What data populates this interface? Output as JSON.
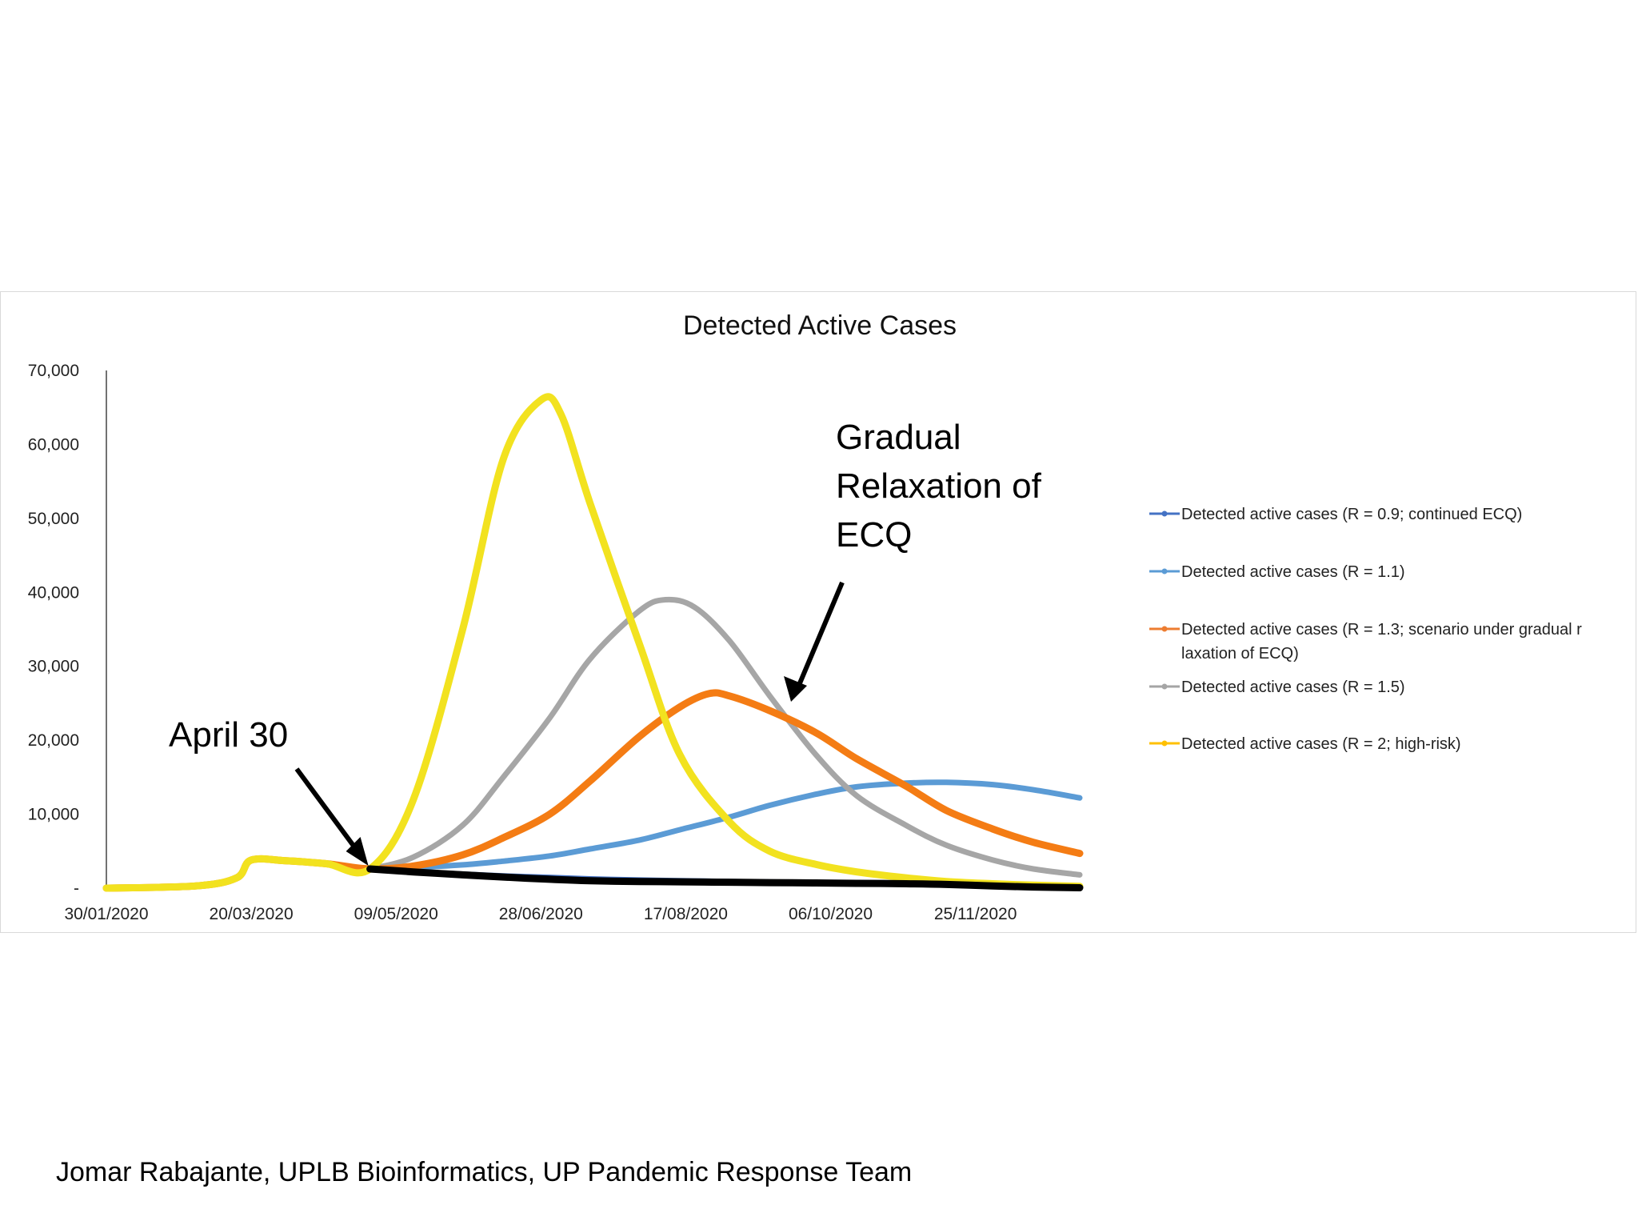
{
  "chart_data": {
    "type": "line",
    "title": "Detected Active Cases",
    "xlabel": "",
    "ylabel": "",
    "x_tick_labels": [
      "30/01/2020",
      "20/03/2020",
      "09/05/2020",
      "28/06/2020",
      "17/08/2020",
      "06/10/2020",
      "25/11/2020"
    ],
    "y_tick_labels": [
      "-",
      "10,000",
      "20,000",
      "30,000",
      "40,000",
      "50,000",
      "60,000",
      "70,000"
    ],
    "ylim": [
      0,
      70000
    ],
    "xlim": [
      "30/01/2020",
      "31/12/2020"
    ],
    "grid": false,
    "legend_position": "right",
    "series": [
      {
        "name": "Detected active cases (R = 0.9; continued ECQ)",
        "color": "#4472C4",
        "x": [
          "30/04/2020",
          "15/05/2020",
          "01/06/2020",
          "15/06/2020",
          "01/07/2020",
          "15/07/2020",
          "01/08/2020",
          "15/08/2020",
          "01/09/2020",
          "20/09/2020"
        ],
        "y": [
          2600,
          2300,
          1950,
          1700,
          1500,
          1300,
          1150,
          1050,
          950,
          850
        ]
      },
      {
        "name": "Detected active cases (R = 1.1)",
        "color": "#5B9BD5",
        "x": [
          "30/04/2020",
          "15/05/2020",
          "01/06/2020",
          "15/06/2020",
          "01/07/2020",
          "15/07/2020",
          "01/08/2020",
          "15/08/2020",
          "01/09/2020",
          "15/09/2020",
          "01/10/2020",
          "15/10/2020",
          "01/11/2020",
          "15/11/2020",
          "01/12/2020",
          "15/12/2020",
          "31/12/2020"
        ],
        "y": [
          2600,
          2800,
          3150,
          3650,
          4350,
          5300,
          6500,
          7900,
          9600,
          11200,
          12700,
          13700,
          14200,
          14300,
          14000,
          13300,
          12200
        ]
      },
      {
        "name": "Detected active cases (R = 1.3; scenario under gradual relaxation of ECQ)",
        "color": "#ED7D31",
        "x": [
          "30/01/2020",
          "01/03/2020",
          "15/03/2020",
          "20/03/2020",
          "01/04/2020",
          "15/04/2020",
          "30/04/2020",
          "15/05/2020",
          "01/06/2020",
          "15/06/2020",
          "01/07/2020",
          "15/07/2020",
          "01/08/2020",
          "15/08/2020",
          "25/08/2020",
          "01/09/2020",
          "15/09/2020",
          "01/10/2020",
          "15/10/2020",
          "01/11/2020",
          "15/11/2020",
          "01/12/2020",
          "15/12/2020",
          "31/12/2020"
        ],
        "y": [
          0,
          300,
          1400,
          3800,
          3700,
          3300,
          2600,
          3000,
          4500,
          6800,
          10000,
          14500,
          20500,
          24500,
          26300,
          26000,
          24000,
          21000,
          17500,
          13800,
          10500,
          8000,
          6200,
          4700
        ]
      },
      {
        "name": "Detected active cases (R = 1.5)",
        "color": "#A5A5A5",
        "x": [
          "30/04/2020",
          "15/05/2020",
          "01/06/2020",
          "15/06/2020",
          "01/07/2020",
          "15/07/2020",
          "01/08/2020",
          "10/08/2020",
          "20/08/2020",
          "01/09/2020",
          "15/09/2020",
          "01/10/2020",
          "15/10/2020",
          "01/11/2020",
          "15/11/2020",
          "01/12/2020",
          "15/12/2020",
          "31/12/2020"
        ],
        "y": [
          2600,
          4200,
          8500,
          15000,
          23000,
          31000,
          37500,
          39000,
          38000,
          33500,
          26000,
          18000,
          12500,
          8500,
          5800,
          3800,
          2600,
          1800
        ]
      },
      {
        "name": "Detected active cases (R = 2; high-risk)",
        "color": "#FFC000",
        "x": [
          "30/01/2020",
          "01/03/2020",
          "15/03/2020",
          "20/03/2020",
          "01/04/2020",
          "15/04/2020",
          "30/04/2020",
          "15/05/2020",
          "01/06/2020",
          "15/06/2020",
          "28/06/2020",
          "05/07/2020",
          "15/07/2020",
          "01/08/2020",
          "15/08/2020",
          "01/09/2020",
          "15/09/2020",
          "01/10/2020",
          "15/10/2020",
          "01/11/2020",
          "15/11/2020",
          "01/12/2020",
          "15/12/2020",
          "31/12/2020"
        ],
        "y": [
          0,
          300,
          1400,
          3800,
          3700,
          3300,
          2600,
          12000,
          35000,
          58000,
          66000,
          64000,
          52000,
          33000,
          18000,
          9000,
          5000,
          3200,
          2200,
          1400,
          900,
          600,
          400,
          250
        ]
      },
      {
        "name": "",
        "color": "#000000",
        "x": [
          "30/04/2020",
          "15/05/2020",
          "01/06/2020",
          "15/06/2020",
          "01/07/2020",
          "15/07/2020",
          "01/08/2020",
          "15/08/2020",
          "01/09/2020",
          "15/09/2020",
          "01/10/2020",
          "15/10/2020",
          "01/11/2020",
          "15/11/2020",
          "01/12/2020",
          "15/12/2020",
          "31/12/2020"
        ],
        "y": [
          2600,
          2200,
          1800,
          1500,
          1200,
          1000,
          900,
          850,
          800,
          750,
          700,
          650,
          600,
          500,
          300,
          150,
          50
        ]
      }
    ],
    "annotations": [
      {
        "text_lines": [
          "April 30"
        ],
        "points_to": "30/04/2020"
      },
      {
        "text_lines": [
          "Gradual",
          "Relaxation of",
          "ECQ"
        ],
        "points_to": "Detected active cases (R = 1.3; scenario under gradual relaxation of ECQ)"
      }
    ]
  },
  "credit": "Jomar Rabajante, UPLB Bioinformatics, UP Pandemic Response Team"
}
